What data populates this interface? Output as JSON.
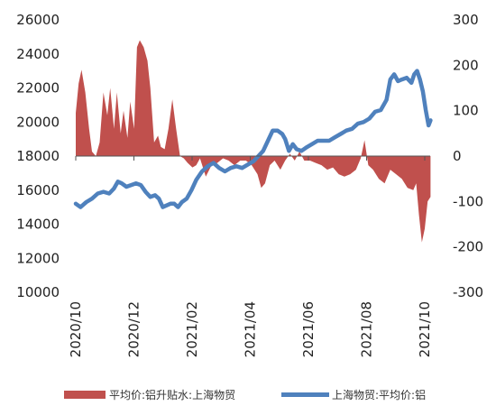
{
  "chart_data": {
    "type": "area+line",
    "title": "",
    "x_tick_labels": [
      "2020/10",
      "2020/12",
      "2021/02",
      "2021/04",
      "2021/06",
      "2021/08",
      "2021/10"
    ],
    "left_axis": {
      "ylim": [
        10000,
        26000
      ],
      "ticks": [
        "26000",
        "24000",
        "22000",
        "20000",
        "18000",
        "16000",
        "14000",
        "12000",
        "10000"
      ]
    },
    "right_axis": {
      "ylim": [
        -300,
        300
      ],
      "ticks": [
        "300",
        "200",
        "100",
        "0",
        "-100",
        "-200",
        "-300"
      ]
    },
    "legend_position": "bottom",
    "grid": false,
    "series": [
      {
        "name": "平均价:铝升贴水:上海物贸",
        "kind": "area",
        "axis": "right",
        "color": "#C0504D",
        "points": [
          [
            "2020-10-01",
            95
          ],
          [
            "2020-10-04",
            160
          ],
          [
            "2020-10-07",
            190
          ],
          [
            "2020-10-11",
            140
          ],
          [
            "2020-10-15",
            60
          ],
          [
            "2020-10-18",
            10
          ],
          [
            "2020-10-22",
            0
          ],
          [
            "2020-10-26",
            30
          ],
          [
            "2020-10-30",
            140
          ],
          [
            "2020-11-03",
            90
          ],
          [
            "2020-11-06",
            150
          ],
          [
            "2020-11-10",
            60
          ],
          [
            "2020-11-13",
            140
          ],
          [
            "2020-11-17",
            50
          ],
          [
            "2020-11-20",
            100
          ],
          [
            "2020-11-24",
            40
          ],
          [
            "2020-11-27",
            120
          ],
          [
            "2020-12-01",
            60
          ],
          [
            "2020-12-04",
            240
          ],
          [
            "2020-12-07",
            255
          ],
          [
            "2020-12-11",
            240
          ],
          [
            "2020-12-15",
            210
          ],
          [
            "2020-12-18",
            150
          ],
          [
            "2020-12-22",
            30
          ],
          [
            "2020-12-26",
            45
          ],
          [
            "2020-12-29",
            20
          ],
          [
            "2021-01-02",
            15
          ],
          [
            "2021-01-06",
            60
          ],
          [
            "2021-01-10",
            125
          ],
          [
            "2021-01-14",
            60
          ],
          [
            "2021-01-18",
            0
          ],
          [
            "2021-01-22",
            -5
          ],
          [
            "2021-01-26",
            -15
          ],
          [
            "2021-01-31",
            -25
          ],
          [
            "2021-02-04",
            -20
          ],
          [
            "2021-02-08",
            -5
          ],
          [
            "2021-02-14",
            -45
          ],
          [
            "2021-02-20",
            -20
          ],
          [
            "2021-02-26",
            -15
          ],
          [
            "2021-03-04",
            -5
          ],
          [
            "2021-03-10",
            -10
          ],
          [
            "2021-03-16",
            -20
          ],
          [
            "2021-03-22",
            -10
          ],
          [
            "2021-03-28",
            -10
          ],
          [
            "2021-04-03",
            -20
          ],
          [
            "2021-04-09",
            -40
          ],
          [
            "2021-04-13",
            -70
          ],
          [
            "2021-04-17",
            -60
          ],
          [
            "2021-04-22",
            -20
          ],
          [
            "2021-04-27",
            -10
          ],
          [
            "2021-05-03",
            -30
          ],
          [
            "2021-05-08",
            -10
          ],
          [
            "2021-05-13",
            5
          ],
          [
            "2021-05-18",
            -10
          ],
          [
            "2021-05-23",
            10
          ],
          [
            "2021-05-28",
            -10
          ],
          [
            "2021-06-03",
            -10
          ],
          [
            "2021-06-09",
            -15
          ],
          [
            "2021-06-15",
            -20
          ],
          [
            "2021-06-21",
            -30
          ],
          [
            "2021-06-27",
            -25
          ],
          [
            "2021-07-03",
            -40
          ],
          [
            "2021-07-09",
            -45
          ],
          [
            "2021-07-15",
            -40
          ],
          [
            "2021-07-21",
            -30
          ],
          [
            "2021-07-26",
            -5
          ],
          [
            "2021-07-30",
            35
          ],
          [
            "2021-08-03",
            -20
          ],
          [
            "2021-08-08",
            -30
          ],
          [
            "2021-08-14",
            -50
          ],
          [
            "2021-08-20",
            -60
          ],
          [
            "2021-08-26",
            -30
          ],
          [
            "2021-09-01",
            -40
          ],
          [
            "2021-09-07",
            -50
          ],
          [
            "2021-09-13",
            -70
          ],
          [
            "2021-09-19",
            -75
          ],
          [
            "2021-09-22",
            -60
          ],
          [
            "2021-09-25",
            -130
          ],
          [
            "2021-09-28",
            -190
          ],
          [
            "2021-10-01",
            -160
          ],
          [
            "2021-10-04",
            -100
          ],
          [
            "2021-10-07",
            -90
          ]
        ]
      },
      {
        "name": "上海物贸:平均价:铝",
        "kind": "line",
        "axis": "left",
        "color": "#4F81BD",
        "points": [
          [
            "2020-10-01",
            15200
          ],
          [
            "2020-10-06",
            15000
          ],
          [
            "2020-10-12",
            15300
          ],
          [
            "2020-10-18",
            15500
          ],
          [
            "2020-10-24",
            15800
          ],
          [
            "2020-10-30",
            15900
          ],
          [
            "2020-11-05",
            15800
          ],
          [
            "2020-11-10",
            16100
          ],
          [
            "2020-11-14",
            16500
          ],
          [
            "2020-11-18",
            16400
          ],
          [
            "2020-11-23",
            16200
          ],
          [
            "2020-11-28",
            16300
          ],
          [
            "2020-12-03",
            16400
          ],
          [
            "2020-12-08",
            16300
          ],
          [
            "2020-12-13",
            15900
          ],
          [
            "2020-12-18",
            15600
          ],
          [
            "2020-12-23",
            15700
          ],
          [
            "2020-12-27",
            15500
          ],
          [
            "2020-12-31",
            15000
          ],
          [
            "2021-01-04",
            15100
          ],
          [
            "2021-01-08",
            15200
          ],
          [
            "2021-01-12",
            15200
          ],
          [
            "2021-01-16",
            15000
          ],
          [
            "2021-01-20",
            15300
          ],
          [
            "2021-01-25",
            15500
          ],
          [
            "2021-01-30",
            16000
          ],
          [
            "2021-02-04",
            16600
          ],
          [
            "2021-02-10",
            17100
          ],
          [
            "2021-02-16",
            17400
          ],
          [
            "2021-02-22",
            17600
          ],
          [
            "2021-02-28",
            17300
          ],
          [
            "2021-03-06",
            17100
          ],
          [
            "2021-03-12",
            17300
          ],
          [
            "2021-03-18",
            17400
          ],
          [
            "2021-03-24",
            17300
          ],
          [
            "2021-03-30",
            17500
          ],
          [
            "2021-04-05",
            17700
          ],
          [
            "2021-04-10",
            18000
          ],
          [
            "2021-04-15",
            18300
          ],
          [
            "2021-04-20",
            18900
          ],
          [
            "2021-04-25",
            19500
          ],
          [
            "2021-04-30",
            19500
          ],
          [
            "2021-05-05",
            19300
          ],
          [
            "2021-05-08",
            19000
          ],
          [
            "2021-05-12",
            18300
          ],
          [
            "2021-05-16",
            18700
          ],
          [
            "2021-05-20",
            18400
          ],
          [
            "2021-05-25",
            18300
          ],
          [
            "2021-05-30",
            18500
          ],
          [
            "2021-06-05",
            18700
          ],
          [
            "2021-06-11",
            18900
          ],
          [
            "2021-06-17",
            18900
          ],
          [
            "2021-06-23",
            18900
          ],
          [
            "2021-06-29",
            19100
          ],
          [
            "2021-07-05",
            19300
          ],
          [
            "2021-07-11",
            19500
          ],
          [
            "2021-07-17",
            19600
          ],
          [
            "2021-07-23",
            19900
          ],
          [
            "2021-07-29",
            20000
          ],
          [
            "2021-08-04",
            20200
          ],
          [
            "2021-08-10",
            20600
          ],
          [
            "2021-08-16",
            20700
          ],
          [
            "2021-08-22",
            21300
          ],
          [
            "2021-08-26",
            22500
          ],
          [
            "2021-08-30",
            22800
          ],
          [
            "2021-09-03",
            22400
          ],
          [
            "2021-09-07",
            22500
          ],
          [
            "2021-09-12",
            22600
          ],
          [
            "2021-09-17",
            22300
          ],
          [
            "2021-09-20",
            22800
          ],
          [
            "2021-09-23",
            23000
          ],
          [
            "2021-09-26",
            22500
          ],
          [
            "2021-09-29",
            21800
          ],
          [
            "2021-10-02",
            20700
          ],
          [
            "2021-10-05",
            19800
          ],
          [
            "2021-10-07",
            20100
          ]
        ]
      }
    ]
  }
}
